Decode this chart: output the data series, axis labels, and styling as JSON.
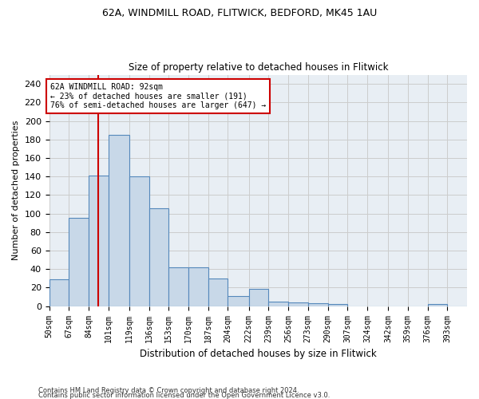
{
  "title_line1": "62A, WINDMILL ROAD, FLITWICK, BEDFORD, MK45 1AU",
  "title_line2": "Size of property relative to detached houses in Flitwick",
  "xlabel": "Distribution of detached houses by size in Flitwick",
  "ylabel": "Number of detached properties",
  "bar_color": "#c8d8e8",
  "bar_edge_color": "#5588bb",
  "grid_color": "#cccccc",
  "bg_color": "#e8eef4",
  "annotation_box_color": "#cc0000",
  "annotation_line_color": "#cc0000",
  "annotation_text_line1": "62A WINDMILL ROAD: 92sqm",
  "annotation_text_line2": "← 23% of detached houses are smaller (191)",
  "annotation_text_line3": "76% of semi-detached houses are larger (647) →",
  "red_line_x": 92,
  "categories": [
    "50sqm",
    "67sqm",
    "84sqm",
    "101sqm",
    "119sqm",
    "136sqm",
    "153sqm",
    "170sqm",
    "187sqm",
    "204sqm",
    "222sqm",
    "239sqm",
    "256sqm",
    "273sqm",
    "290sqm",
    "307sqm",
    "324sqm",
    "342sqm",
    "359sqm",
    "376sqm",
    "393sqm"
  ],
  "bin_edges": [
    50,
    67,
    84,
    101,
    119,
    136,
    153,
    170,
    187,
    204,
    222,
    239,
    256,
    273,
    290,
    307,
    324,
    342,
    359,
    376,
    393,
    410
  ],
  "values": [
    29,
    95,
    141,
    185,
    140,
    106,
    42,
    42,
    30,
    11,
    19,
    5,
    4,
    3,
    2,
    0,
    0,
    0,
    0,
    2,
    0
  ],
  "ylim": [
    0,
    250
  ],
  "yticks": [
    0,
    20,
    40,
    60,
    80,
    100,
    120,
    140,
    160,
    180,
    200,
    220,
    240
  ],
  "footnote1": "Contains HM Land Registry data © Crown copyright and database right 2024.",
  "footnote2": "Contains public sector information licensed under the Open Government Licence v3.0."
}
